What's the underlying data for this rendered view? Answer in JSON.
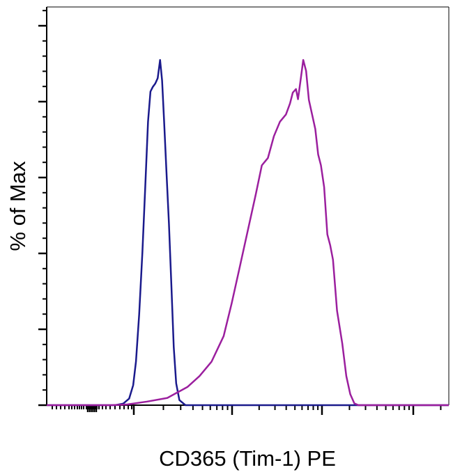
{
  "chart_data": {
    "type": "line",
    "chart_kind": "flow-cytometry-histogram",
    "xlabel": "CD365 (Tim-1) PE",
    "ylabel": "% of Max",
    "x_scale": "log",
    "x_tick_labels_shown": false,
    "y_tick_labels_shown": false,
    "grid": false,
    "legend": "none",
    "xlim": [
      0,
      1
    ],
    "ylim": [
      0,
      1
    ],
    "series": [
      {
        "color": "#1a1a8c",
        "points": [
          [
            0.0,
            0.0
          ],
          [
            0.17,
            0.0
          ],
          [
            0.19,
            0.004
          ],
          [
            0.205,
            0.018
          ],
          [
            0.215,
            0.055
          ],
          [
            0.222,
            0.12
          ],
          [
            0.23,
            0.25
          ],
          [
            0.238,
            0.42
          ],
          [
            0.245,
            0.6
          ],
          [
            0.252,
            0.78
          ],
          [
            0.258,
            0.863
          ],
          [
            0.264,
            0.876
          ],
          [
            0.27,
            0.885
          ],
          [
            0.276,
            0.9
          ],
          [
            0.282,
            0.95
          ],
          [
            0.287,
            0.893
          ],
          [
            0.292,
            0.78
          ],
          [
            0.298,
            0.64
          ],
          [
            0.304,
            0.5
          ],
          [
            0.31,
            0.33
          ],
          [
            0.316,
            0.16
          ],
          [
            0.322,
            0.06
          ],
          [
            0.33,
            0.014
          ],
          [
            0.345,
            0.0
          ],
          [
            1.0,
            0.0
          ]
        ]
      },
      {
        "color": "#9b1f9e",
        "points": [
          [
            0.0,
            0.0
          ],
          [
            0.16,
            0.0
          ],
          [
            0.2,
            0.002
          ],
          [
            0.25,
            0.01
          ],
          [
            0.3,
            0.02
          ],
          [
            0.35,
            0.05
          ],
          [
            0.38,
            0.08
          ],
          [
            0.41,
            0.12
          ],
          [
            0.44,
            0.19
          ],
          [
            0.46,
            0.28
          ],
          [
            0.48,
            0.38
          ],
          [
            0.5,
            0.48
          ],
          [
            0.52,
            0.58
          ],
          [
            0.535,
            0.66
          ],
          [
            0.55,
            0.68
          ],
          [
            0.565,
            0.74
          ],
          [
            0.58,
            0.78
          ],
          [
            0.595,
            0.8
          ],
          [
            0.605,
            0.83
          ],
          [
            0.612,
            0.86
          ],
          [
            0.62,
            0.87
          ],
          [
            0.625,
            0.842
          ],
          [
            0.632,
            0.9
          ],
          [
            0.638,
            0.95
          ],
          [
            0.645,
            0.92
          ],
          [
            0.652,
            0.84
          ],
          [
            0.66,
            0.8
          ],
          [
            0.668,
            0.76
          ],
          [
            0.675,
            0.69
          ],
          [
            0.682,
            0.66
          ],
          [
            0.69,
            0.6
          ],
          [
            0.698,
            0.47
          ],
          [
            0.705,
            0.44
          ],
          [
            0.712,
            0.4
          ],
          [
            0.722,
            0.26
          ],
          [
            0.735,
            0.17
          ],
          [
            0.745,
            0.08
          ],
          [
            0.755,
            0.03
          ],
          [
            0.765,
            0.005
          ],
          [
            0.775,
            0.0
          ],
          [
            1.0,
            0.0
          ]
        ]
      }
    ]
  }
}
